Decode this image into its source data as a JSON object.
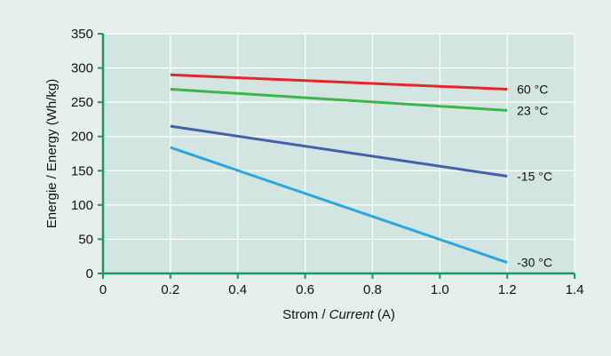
{
  "chart_data": {
    "type": "line",
    "xlabel_prefix": "Strom / ",
    "xlabel_italic": "Current",
    "xlabel_suffix": " (A)",
    "ylabel": "Energie / Energy (Wh/kg)",
    "xlim": [
      0,
      1.4
    ],
    "ylim": [
      0,
      350
    ],
    "xticks": [
      0,
      0.2,
      0.4,
      0.6,
      0.8,
      1.0,
      1.2,
      1.4
    ],
    "xtick_labels": [
      "0",
      "0.2",
      "0.4",
      "0.6",
      "0.8",
      "1.0",
      "1.2",
      "1.4"
    ],
    "yticks": [
      0,
      50,
      100,
      150,
      200,
      250,
      300,
      350
    ],
    "ytick_labels": [
      "0",
      "50",
      "100",
      "150",
      "200",
      "250",
      "300",
      "350"
    ],
    "grid": true,
    "series": [
      {
        "name": "60 °C",
        "color": "#e3272c",
        "x": [
          0.2,
          1.2
        ],
        "y": [
          290,
          269
        ]
      },
      {
        "name": "23 °C",
        "color": "#3cb54a",
        "x": [
          0.2,
          1.2
        ],
        "y": [
          269,
          238
        ]
      },
      {
        "name": "-15 °C",
        "color": "#4560a8",
        "x": [
          0.2,
          1.2
        ],
        "y": [
          215,
          142
        ]
      },
      {
        "name": "-30 °C",
        "color": "#2aa7df",
        "x": [
          0.2,
          1.2
        ],
        "y": [
          184,
          16
        ]
      }
    ],
    "colors": {
      "plot_bg": "#d3e5e0",
      "page_bg": "#e5f0ed",
      "grid": "#ffffff",
      "axis": "#1a9a5e"
    }
  }
}
